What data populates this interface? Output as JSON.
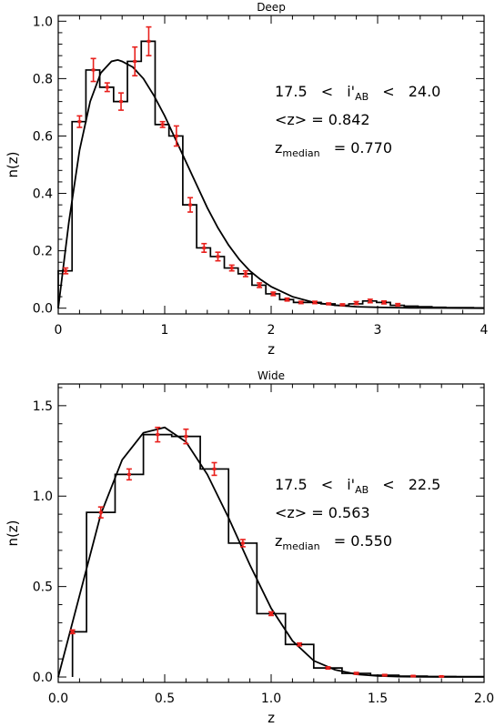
{
  "chart_data": [
    {
      "type": "histogram",
      "title": "Deep",
      "xlabel": "z",
      "ylabel": "n(z)",
      "xlim": [
        0,
        4
      ],
      "ylim": [
        -0.02,
        1.02
      ],
      "xticks": [
        0,
        1,
        2,
        3,
        4
      ],
      "xtick_labels": [
        "0",
        "1",
        "2",
        "3",
        "4"
      ],
      "yticks": [
        0.0,
        0.2,
        0.4,
        0.6,
        0.8,
        1.0
      ],
      "ytick_labels": [
        "0.0",
        "0.2",
        "0.4",
        "0.6",
        "0.8",
        "1.0"
      ],
      "bin_edges": [
        0.0,
        0.13,
        0.26,
        0.39,
        0.52,
        0.65,
        0.78,
        0.91,
        1.04,
        1.17,
        1.3,
        1.43,
        1.56,
        1.69,
        1.82,
        1.95,
        2.08,
        2.21,
        2.34,
        2.47,
        2.6,
        2.73,
        2.86,
        2.99,
        3.12,
        3.25,
        3.38,
        3.51,
        3.64,
        3.77,
        3.9,
        4.0
      ],
      "histogram": [
        0.13,
        0.65,
        0.83,
        0.77,
        0.72,
        0.86,
        0.93,
        0.64,
        0.6,
        0.36,
        0.21,
        0.18,
        0.14,
        0.12,
        0.08,
        0.05,
        0.03,
        0.02,
        0.02,
        0.015,
        0.01,
        0.015,
        0.025,
        0.02,
        0.01,
        0.007,
        0.005,
        0.003,
        0.002,
        0.002,
        0.001
      ],
      "points": {
        "x": [
          0.07,
          0.2,
          0.33,
          0.46,
          0.59,
          0.72,
          0.85,
          0.98,
          1.11,
          1.24,
          1.37,
          1.5,
          1.63,
          1.76,
          1.89,
          2.02,
          2.15,
          2.28,
          2.41,
          2.54,
          2.67,
          2.8,
          2.93,
          3.06,
          3.19
        ],
        "y": [
          0.13,
          0.65,
          0.83,
          0.77,
          0.72,
          0.86,
          0.93,
          0.64,
          0.6,
          0.36,
          0.21,
          0.18,
          0.14,
          0.12,
          0.08,
          0.05,
          0.03,
          0.02,
          0.02,
          0.015,
          0.012,
          0.018,
          0.025,
          0.02,
          0.012
        ],
        "err": [
          0.01,
          0.02,
          0.04,
          0.015,
          0.03,
          0.05,
          0.05,
          0.01,
          0.035,
          0.025,
          0.015,
          0.015,
          0.01,
          0.01,
          0.008,
          0.006,
          0.005,
          0.004,
          0.004,
          0.003,
          0.003,
          0.005,
          0.006,
          0.005,
          0.004
        ]
      },
      "model_curve": {
        "x": [
          0.0,
          0.1,
          0.2,
          0.3,
          0.4,
          0.5,
          0.56,
          0.6,
          0.7,
          0.8,
          0.9,
          1.0,
          1.1,
          1.2,
          1.3,
          1.4,
          1.5,
          1.6,
          1.7,
          1.8,
          1.9,
          2.0,
          2.2,
          2.4,
          2.6,
          2.8,
          3.0,
          3.3,
          3.6,
          4.0
        ],
        "y": [
          0.0,
          0.3,
          0.55,
          0.72,
          0.82,
          0.86,
          0.865,
          0.86,
          0.84,
          0.8,
          0.74,
          0.67,
          0.59,
          0.51,
          0.43,
          0.35,
          0.28,
          0.22,
          0.17,
          0.13,
          0.1,
          0.075,
          0.04,
          0.02,
          0.01,
          0.005,
          0.003,
          0.001,
          0.0005,
          0.0
        ]
      },
      "annotations": {
        "range": {
          "lo": "17.5",
          "lt1": "<",
          "var": "i'",
          "sub": "AB",
          "lt2": "<",
          "hi": "24.0"
        },
        "mean": "<z> = 0.842",
        "median": {
          "var": "z",
          "sub": "median",
          "rest": "= 0.770"
        }
      }
    },
    {
      "type": "histogram",
      "title": "Wide",
      "xlabel": "z",
      "ylabel": "n(z)",
      "xlim": [
        0,
        2
      ],
      "ylim": [
        -0.03,
        1.62
      ],
      "xticks": [
        0.0,
        0.5,
        1.0,
        1.5,
        2.0
      ],
      "xtick_labels": [
        "0.0",
        "0.5",
        "1.0",
        "1.5",
        "2.0"
      ],
      "yticks": [
        0.0,
        0.5,
        1.0,
        1.5
      ],
      "ytick_labels": [
        "0.0",
        "0.5",
        "1.0",
        "1.5"
      ],
      "bin_edges": [
        0.067,
        0.133,
        0.267,
        0.4,
        0.533,
        0.667,
        0.8,
        0.933,
        1.067,
        1.2,
        1.333,
        1.467,
        1.6,
        1.733,
        1.867,
        2.0
      ],
      "histogram": [
        0.25,
        0.91,
        1.12,
        1.34,
        1.33,
        1.15,
        0.74,
        0.35,
        0.18,
        0.05,
        0.02,
        0.01,
        0.005,
        0.003,
        0.002
      ],
      "points": {
        "x": [
          0.067,
          0.2,
          0.333,
          0.467,
          0.6,
          0.733,
          0.867,
          1.0,
          1.133,
          1.267,
          1.4,
          1.533,
          1.667,
          1.8
        ],
        "y": [
          0.25,
          0.91,
          1.12,
          1.34,
          1.33,
          1.15,
          0.74,
          0.35,
          0.18,
          0.05,
          0.02,
          0.01,
          0.005,
          0.003
        ],
        "err": [
          0.01,
          0.03,
          0.03,
          0.04,
          0.04,
          0.035,
          0.02,
          0.01,
          0.008,
          0.006,
          0.005,
          0.004,
          0.003,
          0.002
        ]
      },
      "model_curve": {
        "x": [
          0.0,
          0.1,
          0.2,
          0.3,
          0.4,
          0.5,
          0.6,
          0.7,
          0.8,
          0.9,
          1.0,
          1.1,
          1.2,
          1.3,
          1.4,
          1.5,
          1.6,
          1.7,
          1.8,
          1.9,
          2.0
        ],
        "y": [
          0.0,
          0.45,
          0.9,
          1.2,
          1.35,
          1.38,
          1.3,
          1.12,
          0.88,
          0.62,
          0.38,
          0.2,
          0.09,
          0.04,
          0.015,
          0.006,
          0.002,
          0.001,
          0.0005,
          0.0002,
          0.0
        ]
      },
      "annotations": {
        "range": {
          "lo": "17.5",
          "lt1": "<",
          "var": "i'",
          "sub": "AB",
          "lt2": "<",
          "hi": "22.5"
        },
        "mean": "<z> = 0.563",
        "median": {
          "var": "z",
          "sub": "median",
          "rest": "= 0.550"
        }
      }
    }
  ],
  "colors": {
    "errorbar": "#e8201c",
    "line": "#000000",
    "background": "#ffffff"
  }
}
